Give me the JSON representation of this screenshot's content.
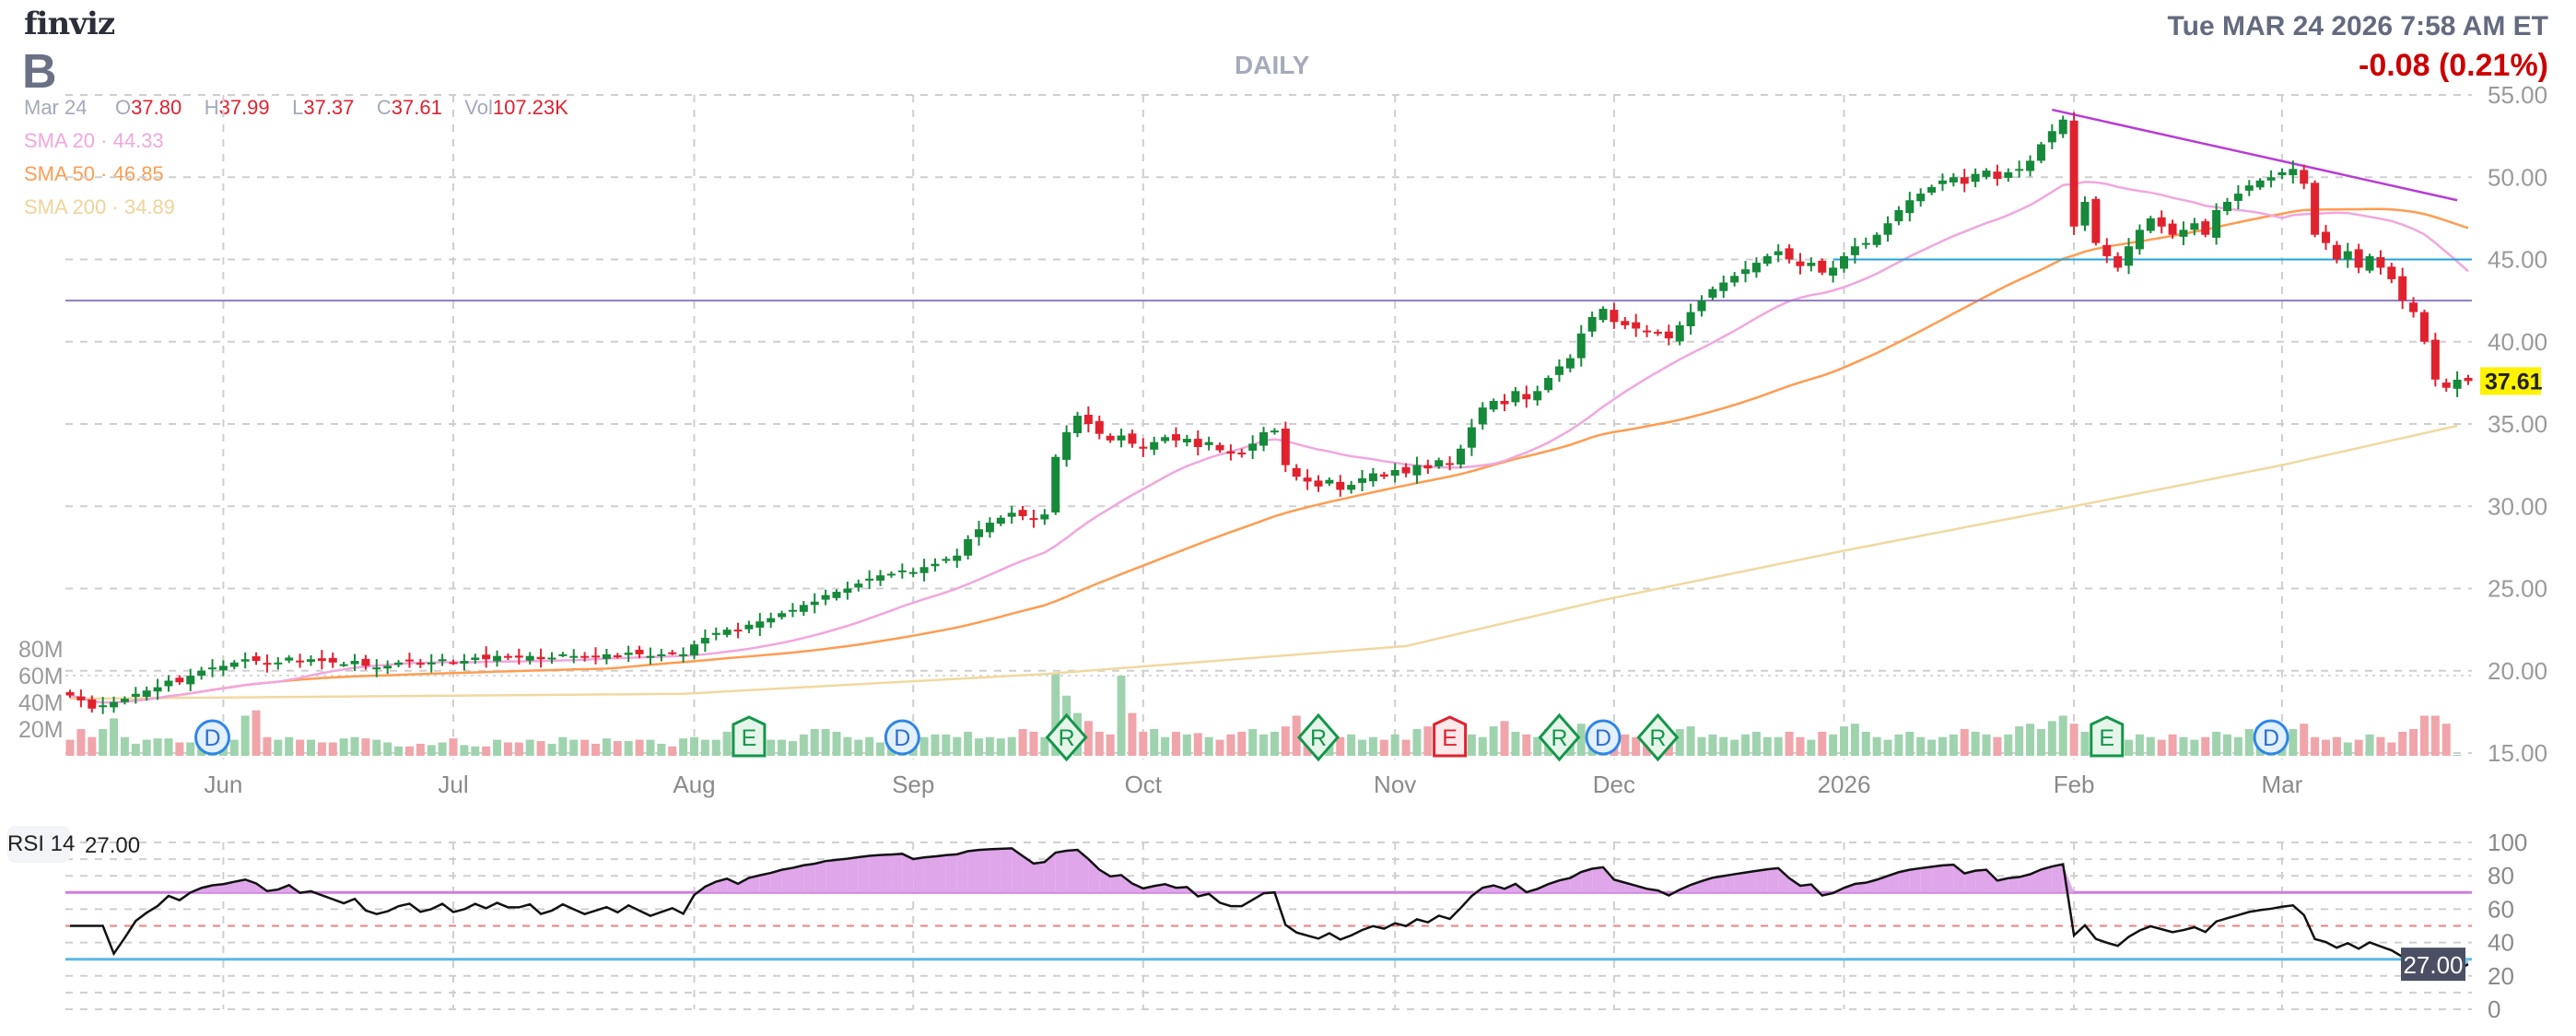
{
  "header": {
    "logo": "finviz",
    "ticker": "B",
    "timeframe": "DAILY",
    "datetime": "Tue MAR 24 2026 7:58 AM ET",
    "change": "-0.08 (0.21%)",
    "ohlc": {
      "date": "Mar 24",
      "o_label": "O",
      "o": "37.80",
      "h_label": "H",
      "h": "37.99",
      "l_label": "L",
      "l": "37.37",
      "c_label": "C",
      "c": "37.61",
      "vol_label": "Vol",
      "vol": "107.23K"
    },
    "sma": [
      {
        "label": "SMA 20",
        "value": "44.33",
        "color": "#f1a7dd"
      },
      {
        "label": "SMA 50",
        "value": "46.85",
        "color": "#fe9c51"
      },
      {
        "label": "SMA 200",
        "value": "34.89",
        "color": "#f0d9a0"
      }
    ]
  },
  "colors": {
    "up": "#16893a",
    "down": "#e0222f",
    "vol_up": "#9fd3ae",
    "vol_down": "#f0a5aa",
    "trendline": "#b83bd6",
    "level": "#8e7cc3",
    "level2": "#1fa3dc",
    "last_price_bg": "#fff200",
    "rsi_tag_bg": "#4a4f63"
  },
  "chart_data": {
    "type": "candlestick",
    "price_axis": {
      "ticks": [
        "55.00",
        "50.00",
        "45.00",
        "40.00",
        "35.00",
        "30.00",
        "25.00",
        "20.00",
        "15.00"
      ],
      "range": [
        15,
        55
      ]
    },
    "volume_axis": {
      "ticks": [
        "80M",
        "60M",
        "40M",
        "20M"
      ]
    },
    "last_price": "37.61",
    "x_ticks": [
      {
        "label": "Jun",
        "bar": 14
      },
      {
        "label": "Jul",
        "bar": 35
      },
      {
        "label": "Aug",
        "bar": 57
      },
      {
        "label": "Sep",
        "bar": 77
      },
      {
        "label": "Oct",
        "bar": 98
      },
      {
        "label": "Nov",
        "bar": 121
      },
      {
        "label": "Dec",
        "bar": 141
      },
      {
        "label": "2026",
        "bar": 162
      },
      {
        "label": "Feb",
        "bar": 183
      },
      {
        "label": "Mar",
        "bar": 202
      }
    ],
    "close": [
      18.5,
      18.2,
      17.7,
      17.9,
      18.1,
      18.3,
      18.6,
      18.8,
      19.0,
      19.4,
      19.3,
      19.7,
      20.0,
      20.2,
      20.3,
      20.5,
      20.7,
      20.6,
      20.4,
      20.5,
      20.8,
      20.6,
      20.7,
      20.6,
      20.5,
      20.4,
      20.6,
      20.3,
      20.2,
      20.3,
      20.5,
      20.6,
      20.4,
      20.5,
      20.7,
      20.5,
      20.6,
      20.8,
      20.7,
      20.9,
      20.8,
      20.8,
      20.9,
      20.7,
      20.8,
      21.0,
      20.9,
      20.8,
      20.9,
      21.0,
      20.9,
      21.1,
      21.0,
      20.9,
      21.0,
      21.1,
      21.0,
      21.6,
      22.0,
      22.3,
      22.5,
      22.4,
      22.8,
      23.0,
      23.2,
      23.5,
      23.7,
      24.0,
      24.2,
      24.6,
      24.8,
      25.0,
      25.3,
      25.6,
      25.8,
      25.9,
      26.1,
      26.0,
      26.3,
      26.5,
      26.8,
      27.0,
      28.0,
      28.6,
      29.0,
      29.3,
      29.6,
      29.4,
      29.2,
      29.5,
      33.0,
      34.5,
      35.5,
      35.0,
      34.4,
      34.0,
      34.3,
      33.8,
      33.5,
      33.9,
      34.2,
      34.0,
      34.1,
      33.6,
      33.9,
      33.4,
      33.2,
      33.2,
      33.8,
      34.5,
      34.6,
      32.5,
      31.8,
      31.5,
      31.2,
      31.6,
      31.0,
      31.3,
      31.7,
      32.0,
      31.8,
      32.2,
      32.0,
      32.5,
      32.3,
      32.8,
      32.6,
      33.5,
      34.8,
      36.0,
      36.4,
      36.2,
      37.0,
      36.5,
      37.0,
      37.8,
      38.5,
      39.0,
      40.5,
      41.5,
      42.0,
      41.2,
      41.0,
      40.8,
      40.6,
      40.5,
      40.2,
      41.0,
      41.8,
      42.5,
      43.2,
      43.6,
      44.0,
      44.4,
      44.8,
      45.2,
      45.5,
      45.0,
      44.6,
      44.8,
      44.2,
      44.5,
      45.2,
      45.8,
      46.0,
      46.5,
      47.2,
      48.0,
      48.6,
      49.0,
      49.4,
      49.8,
      50.0,
      49.6,
      50.2,
      50.4,
      49.9,
      50.3,
      50.5,
      51.0,
      52.0,
      52.8,
      53.5,
      47.0,
      48.5,
      46.0,
      45.2,
      44.5,
      45.8,
      46.8,
      47.5,
      47.0,
      46.5,
      46.8,
      47.2,
      46.5,
      48.0,
      48.5,
      49.0,
      49.5,
      49.8,
      50.0,
      50.3,
      50.5,
      49.6,
      46.5,
      46.0,
      45.0,
      45.5,
      44.5,
      45.2,
      44.5,
      43.8,
      42.5,
      41.8,
      40.0,
      37.7,
      37.2,
      37.69,
      37.61
    ],
    "last_bar_ohlc": [
      37.8,
      37.99,
      37.37,
      37.61
    ],
    "volume_millions": [
      12,
      20,
      14,
      20,
      28,
      14,
      9,
      12,
      13,
      13,
      10,
      10,
      9,
      12,
      13,
      12,
      30,
      34,
      14,
      12,
      14,
      12,
      12,
      10,
      10,
      13,
      14,
      13,
      12,
      10,
      7,
      7,
      9,
      8,
      10,
      13,
      8,
      7,
      7,
      12,
      10,
      10,
      12,
      11,
      9,
      14,
      12,
      12,
      9,
      13,
      11,
      11,
      12,
      12,
      9,
      7,
      13,
      14,
      12,
      12,
      18,
      10,
      16,
      17,
      12,
      12,
      11,
      16,
      20,
      20,
      18,
      14,
      12,
      14,
      10,
      10,
      20,
      11,
      14,
      16,
      16,
      14,
      18,
      13,
      14,
      13,
      14,
      20,
      18,
      14,
      62,
      45,
      32,
      26,
      18,
      16,
      60,
      32,
      18,
      20,
      14,
      18,
      16,
      17,
      14,
      12,
      16,
      18,
      20,
      16,
      18,
      22,
      30,
      16,
      13,
      10,
      14,
      16,
      12,
      14,
      12,
      16,
      12,
      20,
      22,
      16,
      24,
      18,
      16,
      14,
      22,
      26,
      18,
      16,
      14,
      20,
      22,
      18,
      24,
      20,
      26,
      18,
      16,
      14,
      12,
      16,
      18,
      20,
      22,
      14,
      16,
      14,
      12,
      16,
      18,
      14,
      14,
      18,
      14,
      12,
      18,
      16,
      22,
      24,
      18,
      14,
      12,
      16,
      18,
      14,
      12,
      14,
      16,
      20,
      18,
      16,
      14,
      16,
      22,
      24,
      20,
      26,
      30,
      24,
      18,
      20,
      16,
      14,
      12,
      16,
      14,
      12,
      16,
      14,
      12,
      14,
      18,
      16,
      14,
      20,
      22,
      18,
      16,
      20,
      24,
      14,
      12,
      14,
      10,
      12,
      16,
      14,
      10,
      18,
      20,
      30,
      30,
      24,
      0.11
    ],
    "sma200": [
      [
        0,
        18.3
      ],
      [
        56,
        18.6
      ],
      [
        89,
        19.8
      ],
      [
        122,
        21.5
      ],
      [
        140,
        24.3
      ],
      [
        162,
        27.3
      ],
      [
        183,
        30.0
      ],
      [
        202,
        32.5
      ],
      [
        218,
        34.89
      ]
    ],
    "trendline": [
      [
        181,
        54.1
      ],
      [
        218,
        48.6
      ]
    ],
    "levels": [
      {
        "price": 42.5,
        "from_bar": 0,
        "color": "level"
      },
      {
        "price": 45.0,
        "from_bar": 161,
        "color": "level2"
      }
    ],
    "events": [
      {
        "type": "D",
        "bar": 13
      },
      {
        "type": "E",
        "bar": 62
      },
      {
        "type": "D",
        "bar": 76
      },
      {
        "type": "R",
        "bar": 91
      },
      {
        "type": "R",
        "bar": 114
      },
      {
        "type": "E",
        "bar": 126,
        "negative": true
      },
      {
        "type": "R",
        "bar": 136
      },
      {
        "type": "D",
        "bar": 140
      },
      {
        "type": "R",
        "bar": 145
      },
      {
        "type": "E",
        "bar": 186
      },
      {
        "type": "D",
        "bar": 201
      }
    ],
    "rsi": {
      "label": "RSI 14",
      "value": "27.00",
      "period": 14,
      "overbought": 70,
      "oversold": 30,
      "mid": 50,
      "ticks": [
        "100",
        "80",
        "60",
        "40",
        "20",
        "0"
      ]
    }
  }
}
